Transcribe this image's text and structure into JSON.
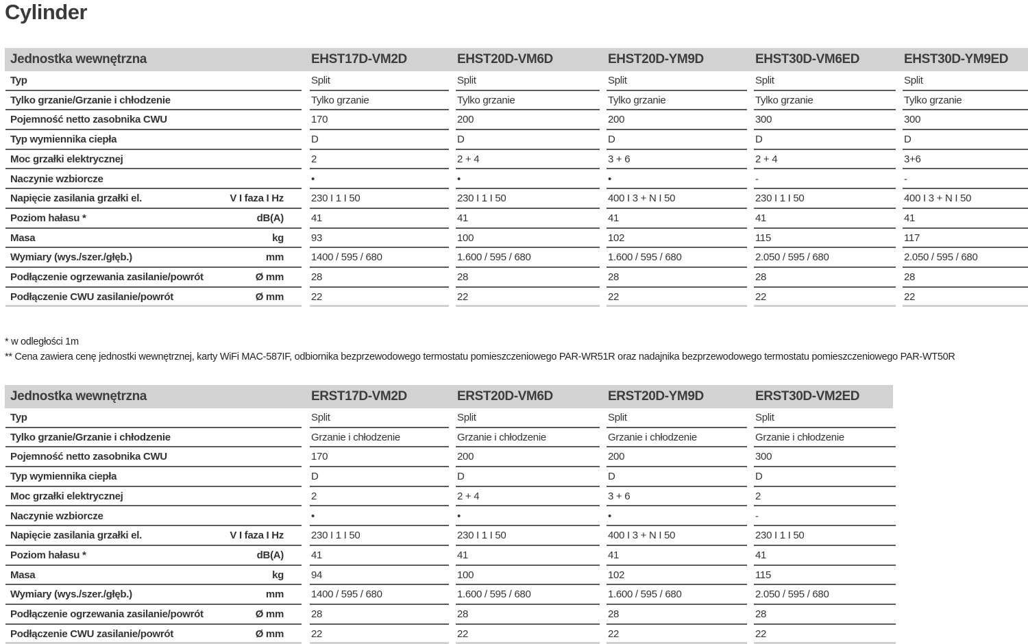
{
  "title": "Cylinder",
  "footnotes": [
    "* w odległości 1m",
    "** Cena zawiera cenę jednostki wewnętrznej, karty WiFi MAC-587IF, odbiornika bezprzewodowego termostatu pomieszczeniowego PAR-WR51R oraz nadajnika bezprzewodowego termostatu pomieszczeniowego PAR-WT50R"
  ],
  "tables": [
    {
      "header_label": "Jednostka wewnętrzna",
      "models": [
        "EHST17D-VM2D",
        "EHST20D-VM6D",
        "EHST20D-YM9D",
        "EHST30D-VM6ED",
        "EHST30D-YM9ED"
      ],
      "rows": [
        {
          "label": "Typ",
          "unit": "",
          "values": [
            "Split",
            "Split",
            "Split",
            "Split",
            "Split"
          ]
        },
        {
          "label": "Tylko grzanie/Grzanie i chłodzenie",
          "unit": "",
          "values": [
            "Tylko grzanie",
            "Tylko grzanie",
            "Tylko grzanie",
            "Tylko grzanie",
            "Tylko grzanie"
          ]
        },
        {
          "label": "Pojemność netto zasobnika CWU",
          "unit": "",
          "values": [
            "170",
            "200",
            "200",
            "300",
            "300"
          ]
        },
        {
          "label": "Typ wymiennika ciepła",
          "unit": "",
          "values": [
            "D",
            "D",
            "D",
            "D",
            "D"
          ]
        },
        {
          "label": "Moc grzałki elektrycznej",
          "unit": "",
          "values": [
            "2",
            "2 + 4",
            "3 + 6",
            "2 + 4",
            "3+6"
          ]
        },
        {
          "label": "Naczynie wzbiorcze",
          "unit": "",
          "values": [
            "•",
            "•",
            "•",
            "-",
            "-"
          ]
        },
        {
          "label": "Napięcie zasilania grzałki el.",
          "unit": "V I faza I Hz",
          "values": [
            "230 I 1 I 50",
            "230 I 1 I 50",
            "400 I 3 + N I 50",
            "230 I 1 I 50",
            "400 I 3 + N I 50"
          ]
        },
        {
          "label": "Poziom hałasu *",
          "unit": "dB(A)",
          "values": [
            "41",
            "41",
            "41",
            "41",
            "41"
          ]
        },
        {
          "label": "Masa",
          "unit": "kg",
          "values": [
            "93",
            "100",
            "102",
            "115",
            "117"
          ]
        },
        {
          "label": "Wymiary (wys./szer./głęb.)",
          "unit": "mm",
          "values": [
            "1400 / 595 / 680",
            "1.600 / 595 / 680",
            "1.600 / 595 / 680",
            "2.050 / 595 / 680",
            "2.050 / 595 / 680"
          ]
        },
        {
          "label": "Podłączenie ogrzewania zasilanie/powrót",
          "unit": "Ø mm",
          "values": [
            "28",
            "28",
            "28",
            "28",
            "28"
          ]
        },
        {
          "label": "Podłączenie CWU zasilanie/powrót",
          "unit": "Ø mm",
          "values": [
            "22",
            "22",
            "22",
            "22",
            "22"
          ]
        }
      ]
    },
    {
      "header_label": "Jednostka wewnętrzna",
      "models": [
        "ERST17D-VM2D",
        "ERST20D-VM6D",
        "ERST20D-YM9D",
        "ERST30D-VM2ED"
      ],
      "rows": [
        {
          "label": "Typ",
          "unit": "",
          "values": [
            "Split",
            "Split",
            "Split",
            "Split"
          ]
        },
        {
          "label": "Tylko grzanie/Grzanie i chłodzenie",
          "unit": "",
          "values": [
            "Grzanie i chłodzenie",
            "Grzanie i chłodzenie",
            "Grzanie i chłodzenie",
            "Grzanie i chłodzenie"
          ]
        },
        {
          "label": "Pojemność netto zasobnika CWU",
          "unit": "",
          "values": [
            "170",
            "200",
            "200",
            "300"
          ]
        },
        {
          "label": "Typ wymiennika ciepła",
          "unit": "",
          "values": [
            "D",
            "D",
            "D",
            "D"
          ]
        },
        {
          "label": "Moc grzałki elektrycznej",
          "unit": "",
          "values": [
            "2",
            "2 + 4",
            "3 + 6",
            "2"
          ]
        },
        {
          "label": "Naczynie wzbiorcze",
          "unit": "",
          "values": [
            "•",
            "•",
            "•",
            "-"
          ]
        },
        {
          "label": "Napięcie zasilania grzałki el.",
          "unit": "V I faza I Hz",
          "values": [
            "230 I 1 I 50",
            "230 I 1 I 50",
            "400 I 3 + N I 50",
            "230 I 1 I 50"
          ]
        },
        {
          "label": "Poziom hałasu *",
          "unit": "dB(A)",
          "values": [
            "41",
            "41",
            "41",
            "41"
          ]
        },
        {
          "label": "Masa",
          "unit": "kg",
          "values": [
            "94",
            "100",
            "102",
            "115"
          ]
        },
        {
          "label": "Wymiary (wys./szer./głęb.)",
          "unit": "mm",
          "values": [
            "1400 / 595 / 680",
            "1.600 / 595 / 680",
            "1.600 / 595 / 680",
            "2.050 / 595 / 680"
          ]
        },
        {
          "label": "Podłączenie ogrzewania zasilanie/powrót",
          "unit": "Ø mm",
          "values": [
            "28",
            "28",
            "28",
            "28"
          ]
        },
        {
          "label": "Podłączenie CWU zasilanie/powrót",
          "unit": "Ø mm",
          "values": [
            "22",
            "22",
            "22",
            "22"
          ]
        }
      ]
    }
  ]
}
